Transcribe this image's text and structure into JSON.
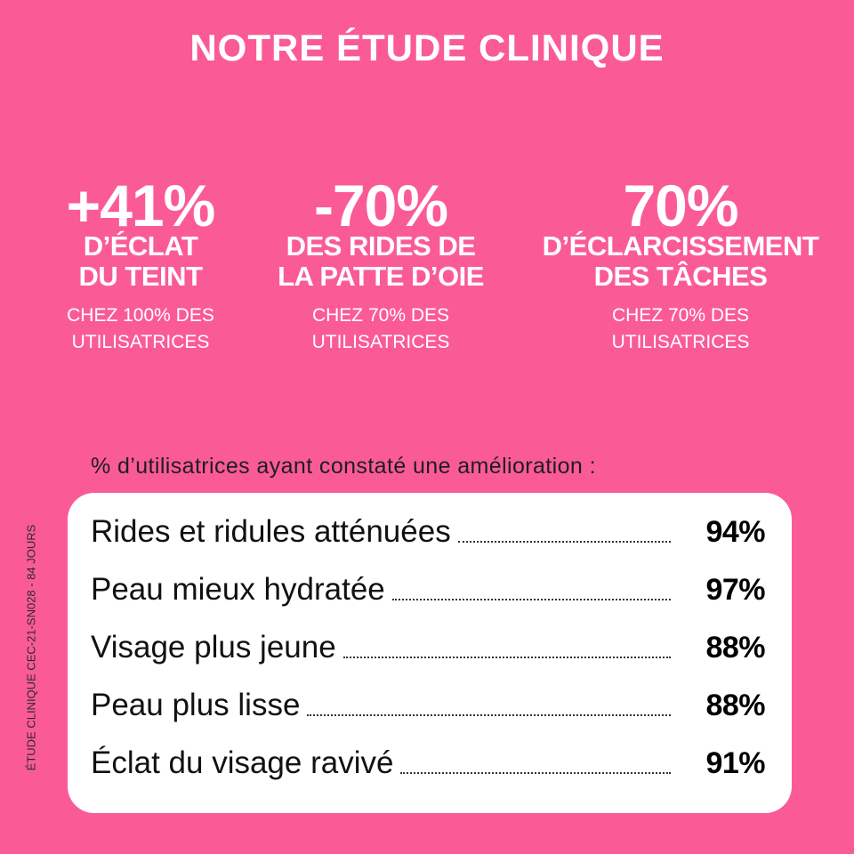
{
  "title": "NOTRE ÉTUDE CLINIQUE",
  "stats": [
    {
      "value": "+41%",
      "label_line1": "D’ÉCLAT",
      "label_line2": "DU TEINT",
      "sub_line1": "CHEZ 100% DES",
      "sub_line2": "UTILISATRICES"
    },
    {
      "value": "-70%",
      "label_line1": "DES RIDES DE",
      "label_line2": "LA PATTE D’OIE",
      "sub_line1": "CHEZ 70% DES",
      "sub_line2": "UTILISATRICES"
    },
    {
      "value": "70%",
      "label_line1": "D’ÉCLARCISSEMENT",
      "label_line2": "DES TÂCHES",
      "sub_line1": "CHEZ 70% DES",
      "sub_line2": "UTILISATRICES"
    }
  ],
  "subtitle": "% d’utilisatrices ayant constaté une amélioration :",
  "side_note": "ÉTUDE CLINIQUE CEC-21-SN028 - 84 JOURS",
  "results": [
    {
      "label": "Rides et ridules atténuées",
      "value": "94%"
    },
    {
      "label": "Peau mieux hydratée",
      "value": "97%"
    },
    {
      "label": "Visage plus jeune",
      "value": "88%"
    },
    {
      "label": "Peau plus lisse",
      "value": "88%"
    },
    {
      "label": "Éclat du visage ravivé",
      "value": "91%"
    }
  ],
  "colors": {
    "background": "#fa5b97",
    "card": "#ffffff",
    "text_light": "#ffffff",
    "text_dark": "#111111"
  }
}
